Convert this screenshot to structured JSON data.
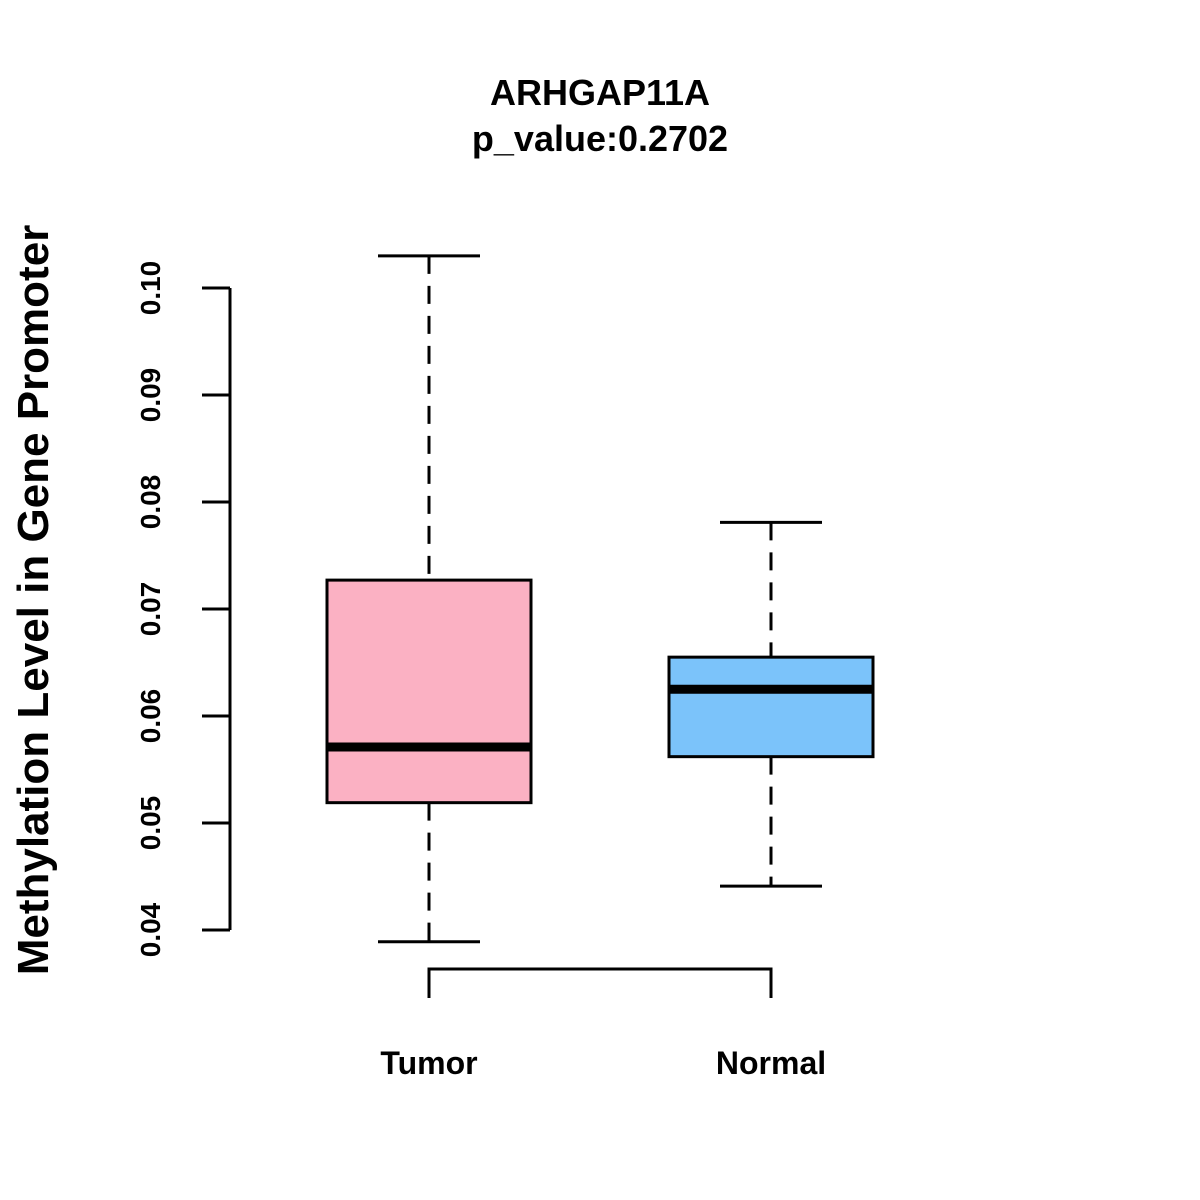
{
  "chart_data": {
    "type": "boxplot",
    "title": "ARHGAP11A",
    "subtitle": "p_value:0.2702",
    "ylabel": "Methylation Level in Gene Promoter",
    "xlabel": "",
    "ylim": [
      0.04,
      0.1
    ],
    "yticks": [
      0.04,
      0.05,
      0.06,
      0.07,
      0.08,
      0.09,
      0.1
    ],
    "ytick_labels": [
      "0.04",
      "0.05",
      "0.06",
      "0.07",
      "0.08",
      "0.09",
      "0.10"
    ],
    "categories": [
      "Tumor",
      "Normal"
    ],
    "boxes": [
      {
        "name": "Tumor",
        "whisker_low": 0.0389,
        "q1": 0.0519,
        "median": 0.0571,
        "q3": 0.0727,
        "whisker_high": 0.103,
        "color": "#FBB1C3"
      },
      {
        "name": "Normal",
        "whisker_low": 0.0441,
        "q1": 0.0562,
        "median": 0.0625,
        "q3": 0.0655,
        "whisker_high": 0.0781,
        "color": "#7BC3FA"
      }
    ],
    "bracket": {
      "from": "Tumor",
      "to": "Normal"
    },
    "grid": false,
    "legend": "none"
  }
}
